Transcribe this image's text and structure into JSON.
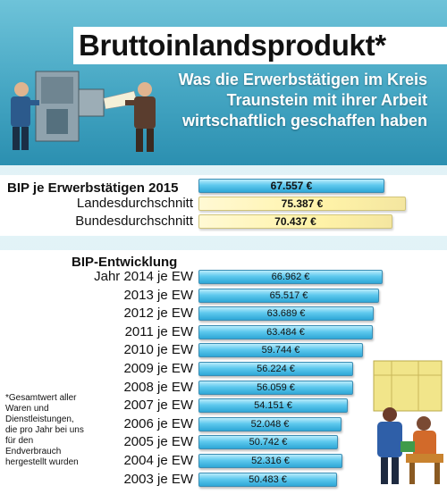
{
  "header": {
    "title": "Bruttoinlandsprodukt*",
    "subtitle_lines": [
      "Was die Erwerbstätigen im Kreis",
      "Traunstein mit ihrer Arbeit",
      "wirtschaftlich geschaffen haben"
    ]
  },
  "footnote": "*Gesamtwert aller Waren und Dienstleistungen, die pro Jahr bei uns für den Endverbrauch hergestellt wurden",
  "colors": {
    "header": "#45a6c3",
    "bar_blue": "#2fa7d6",
    "bar_yellow": "#fff3a8"
  },
  "chart_data": [
    {
      "type": "bar",
      "orientation": "horizontal",
      "title": "BIP je Erwerbstätigen 2015",
      "categories": [
        "",
        "Landesdurchschnitt",
        "Bundesdurchschnitt"
      ],
      "values": [
        67557,
        75387,
        70437
      ],
      "value_labels": [
        "67.557 €",
        "75.387 €",
        "70.437 €"
      ],
      "bar_colors": [
        "blue",
        "yellow",
        "yellow"
      ]
    },
    {
      "type": "bar",
      "orientation": "horizontal",
      "title": "BIP-Entwicklung",
      "categories": [
        "Jahr 2014 je EW",
        "2013 je EW",
        "2012 je EW",
        "2011 je EW",
        "2010 je EW",
        "2009 je EW",
        "2008 je EW",
        "2007 je EW",
        "2006 je EW",
        "2005 je EW",
        "2004 je EW",
        "2003 je EW"
      ],
      "values": [
        66962,
        65517,
        63689,
        63484,
        59744,
        56224,
        56059,
        54151,
        52048,
        50742,
        52316,
        50483
      ],
      "value_labels": [
        "66.962 €",
        "65.517 €",
        "63.689 €",
        "63.484 €",
        "59.744 €",
        "56.224 €",
        "56.059 €",
        "54.151 €",
        "52.048 €",
        "50.742 €",
        "52.316 €",
        "50.483 €"
      ]
    }
  ]
}
